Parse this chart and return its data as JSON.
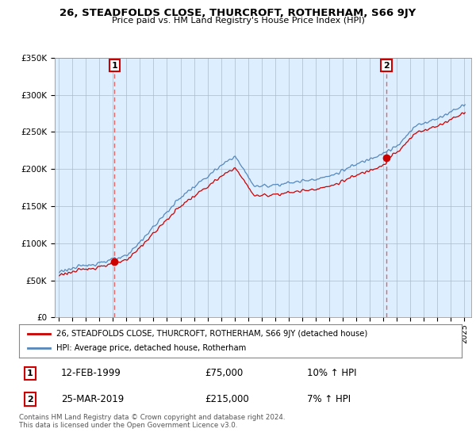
{
  "title": "26, STEADFOLDS CLOSE, THURCROFT, ROTHERHAM, S66 9JY",
  "subtitle": "Price paid vs. HM Land Registry's House Price Index (HPI)",
  "property_label": "26, STEADFOLDS CLOSE, THURCROFT, ROTHERHAM, S66 9JY (detached house)",
  "hpi_label": "HPI: Average price, detached house, Rotherham",
  "footer": "Contains HM Land Registry data © Crown copyright and database right 2024.\nThis data is licensed under the Open Government Licence v3.0.",
  "transaction1_date": "12-FEB-1999",
  "transaction1_price": "£75,000",
  "transaction1_hpi": "10% ↑ HPI",
  "transaction2_date": "25-MAR-2019",
  "transaction2_price": "£215,000",
  "transaction2_hpi": "7% ↑ HPI",
  "ylim": [
    0,
    350000
  ],
  "yticks": [
    0,
    50000,
    100000,
    150000,
    200000,
    250000,
    300000,
    350000
  ],
  "ytick_labels": [
    "£0",
    "£50K",
    "£100K",
    "£150K",
    "£200K",
    "£250K",
    "£300K",
    "£350K"
  ],
  "line_color_property": "#cc0000",
  "line_color_hpi": "#5588bb",
  "vline_color": "#dd6666",
  "marker_color": "#cc0000",
  "chart_bg_color": "#ddeeff",
  "background_color": "#ffffff",
  "grid_color": "#aabbcc",
  "transaction1_x": 1999.12,
  "transaction1_y": 75000,
  "transaction2_x": 2019.23,
  "transaction2_y": 215000,
  "xlim_left": 1994.7,
  "xlim_right": 2025.5
}
